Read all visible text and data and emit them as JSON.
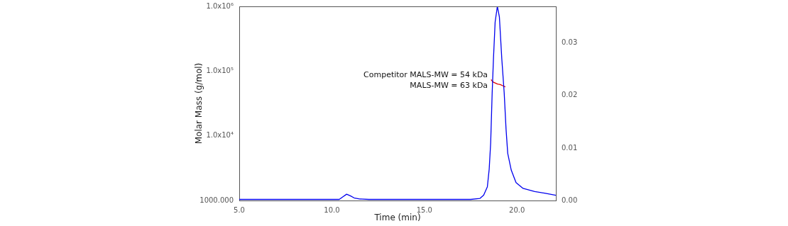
{
  "chart_data": {
    "type": "line",
    "xlabel": "Time (min)",
    "ylabel": "Molar Mass (g/mol)",
    "log": "y",
    "grid": false,
    "legend": false,
    "marker": "none",
    "line_style": "solid",
    "xlim": [
      5,
      22.1
    ],
    "xticks": [
      {
        "value": 5,
        "label": "5.0"
      },
      {
        "value": 10,
        "label": "10.0"
      },
      {
        "value": 15,
        "label": "15.0"
      },
      {
        "value": 20,
        "label": "20.0"
      }
    ],
    "ylim": [
      1000,
      1000000
    ],
    "yticks": [
      {
        "value": 1000,
        "label": "1000.000"
      },
      {
        "value": 10000,
        "label": "1.0x10⁴"
      },
      {
        "value": 100000,
        "label": "1.0x10⁵"
      },
      {
        "value": 1000000,
        "label": "1.0x10⁶"
      }
    ],
    "y2lim": [
      0,
      0.037
    ],
    "y2ticks": [
      {
        "value": 0,
        "label": "0.00"
      },
      {
        "value": 0.01,
        "label": "0.01"
      },
      {
        "value": 0.02,
        "label": "0.02"
      },
      {
        "value": 0.03,
        "label": "0.03"
      }
    ],
    "annotations": [
      "Competitor MALS-MW = 54 kDa",
      "MALS-MW = 63 kDa"
    ],
    "series": [
      {
        "color": "#0000ee",
        "axis": "y2",
        "x": [
          5,
          7,
          9,
          10,
          10.4,
          10.6,
          10.8,
          11,
          11.2,
          11.5,
          12,
          14,
          16,
          17.5,
          18,
          18.2,
          18.4,
          18.5,
          18.58,
          18.66,
          18.73,
          18.82,
          18.94,
          19.05,
          19.18,
          19.31,
          19.41,
          19.5,
          19.69,
          19.95,
          20.33,
          20.96,
          21.49,
          22.1
        ],
        "values": [
          0.0002,
          0.0002,
          0.0002,
          0.0002,
          0.0002,
          0.0007,
          0.0012,
          0.0009,
          0.0005,
          0.0003,
          0.0002,
          0.0002,
          0.0002,
          0.0002,
          0.0004,
          0.001,
          0.0026,
          0.006,
          0.011,
          0.0205,
          0.027,
          0.034,
          0.037,
          0.035,
          0.027,
          0.0205,
          0.0136,
          0.009,
          0.0058,
          0.0034,
          0.0023,
          0.0017,
          0.0014,
          0.001
        ]
      },
      {
        "color": "#dd0000",
        "axis": "y",
        "x": [
          18.6,
          18.7,
          18.8,
          18.95,
          19.1,
          19.25,
          19.37
        ],
        "values": [
          74000,
          68000,
          66000,
          63000,
          62000,
          59000,
          57000
        ]
      }
    ]
  }
}
